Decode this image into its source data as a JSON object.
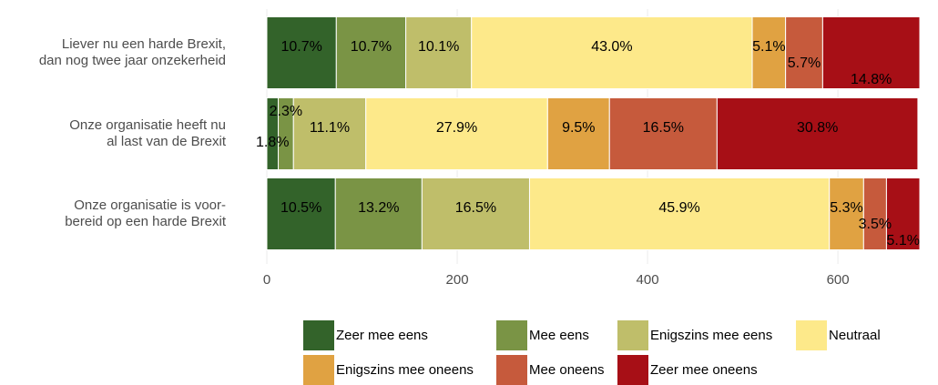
{
  "chart_data": {
    "type": "stacked-bar-horizontal",
    "categories": [
      "Liever nu een harde Brexit,\ndan nog twee jaar onzekerheid",
      "Onze organisatie heeft nu\nal last van de Brexit",
      "Onze organisatie is voor-\nbereid op een harde Brexit"
    ],
    "series": [
      {
        "name": "Zeer mee eens",
        "color": "#33632a",
        "values": [
          73,
          12,
          72
        ],
        "value_labels": [
          "10.7%",
          "1.8%",
          "10.5%"
        ]
      },
      {
        "name": "Mee eens",
        "color": "#7a9445",
        "values": [
          73,
          16,
          91
        ],
        "value_labels": [
          "10.7%",
          "2.3%",
          "13.2%"
        ]
      },
      {
        "name": "Enigszins mee eens",
        "color": "#bfbe6a",
        "values": [
          69,
          76,
          113
        ],
        "value_labels": [
          "10.1%",
          "11.1%",
          "16.5%"
        ]
      },
      {
        "name": "Neutraal",
        "color": "#fde98a",
        "values": [
          295,
          191,
          315
        ],
        "value_labels": [
          "43.0%",
          "27.9%",
          "45.9%"
        ]
      },
      {
        "name": "Enigszins mee oneens",
        "color": "#e0a242",
        "values": [
          35,
          65,
          36
        ],
        "value_labels": [
          "5.1%",
          "9.5%",
          "5.3%"
        ]
      },
      {
        "name": "Mee oneens",
        "color": "#c65a3c",
        "values": [
          39,
          113,
          24
        ],
        "value_labels": [
          "5.7%",
          "16.5%",
          "3.5%"
        ]
      },
      {
        "name": "Zeer mee oneens",
        "color": "#a70f16",
        "values": [
          102,
          211,
          35
        ],
        "value_labels": [
          "14.8%",
          "30.8%",
          "5.1%"
        ]
      }
    ],
    "xlim": [
      0,
      686
    ],
    "xticks": [
      0,
      200,
      400,
      600
    ],
    "grid": true
  }
}
